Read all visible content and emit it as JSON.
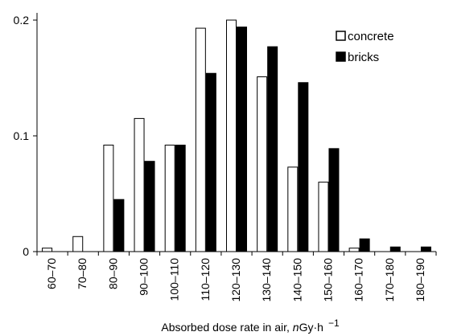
{
  "chart_data": {
    "type": "bar",
    "categories": [
      "60–70",
      "70–80",
      "80–90",
      "90–100",
      "100–110",
      "110–120",
      "120–130",
      "130–140",
      "140–150",
      "150–160",
      "160–170",
      "170–180",
      "180–190"
    ],
    "series": [
      {
        "name": "concrete",
        "values": [
          0.003,
          0.013,
          0.092,
          0.115,
          0.092,
          0.193,
          0.2,
          0.151,
          0.073,
          0.06,
          0.003,
          0,
          0
        ],
        "color": "#ffffff",
        "stroke": "#000000"
      },
      {
        "name": "bricks",
        "values": [
          0,
          0,
          0.045,
          0.078,
          0.092,
          0.154,
          0.194,
          0.177,
          0.146,
          0.089,
          0.011,
          0.004,
          0.004
        ],
        "color": "#000000",
        "stroke": "#000000"
      }
    ],
    "ylim": [
      0,
      0.2
    ],
    "yticks": [
      "0",
      "0.1",
      "0.2"
    ],
    "ytick_values": [
      0,
      0.1,
      0.2
    ],
    "xlabel_prefix": "Absorbed dose rate in air, ",
    "xlabel_unit_n": "n",
    "xlabel_unit_rest": "Gy·h",
    "xlabel_exponent": "−1",
    "ylabel": "",
    "legend_position": "top-right",
    "grid": false
  }
}
